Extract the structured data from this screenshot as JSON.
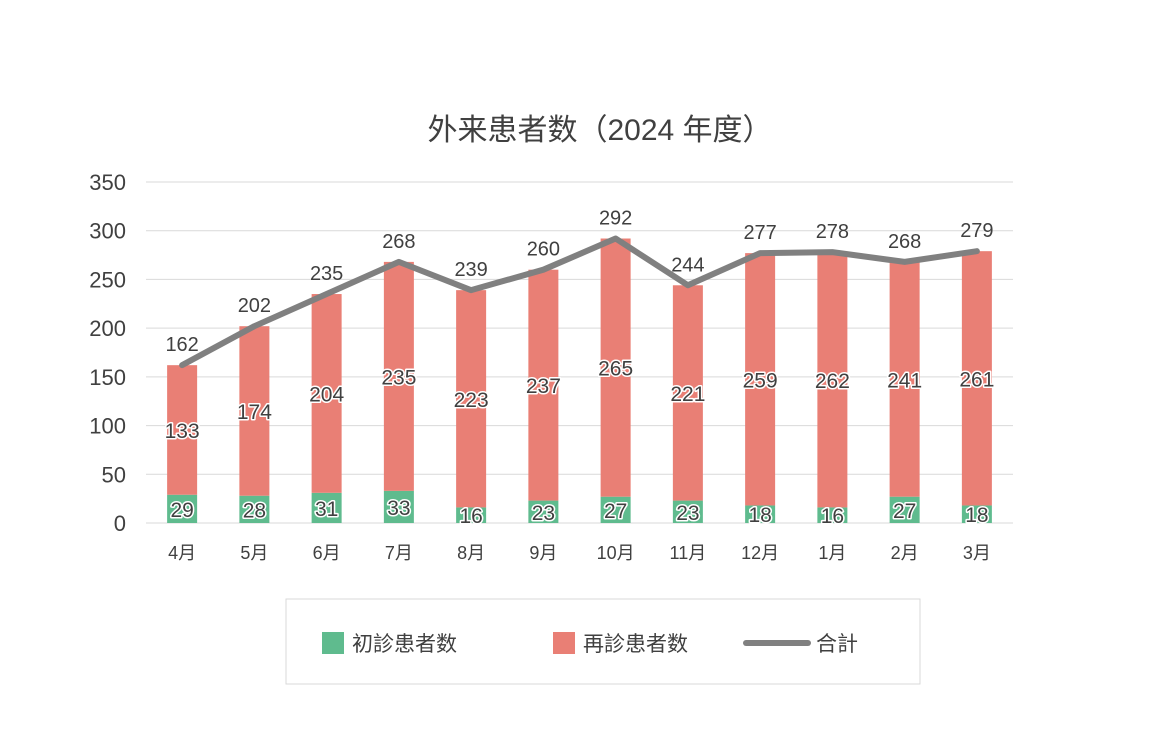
{
  "chart_data": {
    "type": "bar",
    "stacked": true,
    "title": "外来患者数（2024 年度）",
    "categories": [
      "4月",
      "5月",
      "6月",
      "7月",
      "8月",
      "9月",
      "10月",
      "11月",
      "12月",
      "1月",
      "2月",
      "3月"
    ],
    "series": [
      {
        "name": "初診患者数",
        "type": "bar",
        "color": "#5fbb8e",
        "values": [
          29,
          28,
          31,
          33,
          16,
          23,
          27,
          23,
          18,
          16,
          27,
          18
        ]
      },
      {
        "name": "再診患者数",
        "type": "bar",
        "color": "#e97f75",
        "values": [
          133,
          174,
          204,
          235,
          223,
          237,
          265,
          221,
          259,
          262,
          241,
          261
        ]
      },
      {
        "name": "合計",
        "type": "line",
        "color": "#808080",
        "values": [
          162,
          202,
          235,
          268,
          239,
          260,
          292,
          244,
          277,
          278,
          268,
          279
        ]
      }
    ],
    "ylim": [
      0,
      350
    ],
    "yticks": [
      0,
      50,
      100,
      150,
      200,
      250,
      300,
      350
    ],
    "grid": true,
    "legend": "bottom"
  }
}
